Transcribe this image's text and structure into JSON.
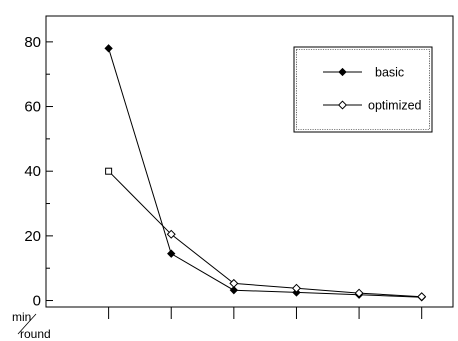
{
  "chart_data": {
    "type": "line",
    "x": [
      1,
      2,
      3,
      4,
      5,
      6
    ],
    "series": [
      {
        "name": "basic",
        "marker": "filled-diamond",
        "color": "#000000",
        "values": [
          78,
          14.5,
          3.2,
          2.5,
          1.8,
          1.0
        ]
      },
      {
        "name": "optimized",
        "marker": "open-diamond",
        "color": "#000000",
        "values": [
          40,
          20.5,
          5.3,
          3.8,
          2.3,
          1.2
        ]
      }
    ],
    "y_ticks": [
      "0",
      "20",
      "40",
      "60",
      "80"
    ],
    "ylim": [
      -2,
      88
    ],
    "xlim": [
      0,
      6.5
    ],
    "title": "",
    "xlabel": "",
    "ylabel": "",
    "unit_label": {
      "numerator": "min",
      "denominator": "round"
    },
    "legend": {
      "position": "top-right"
    },
    "grid": false
  }
}
